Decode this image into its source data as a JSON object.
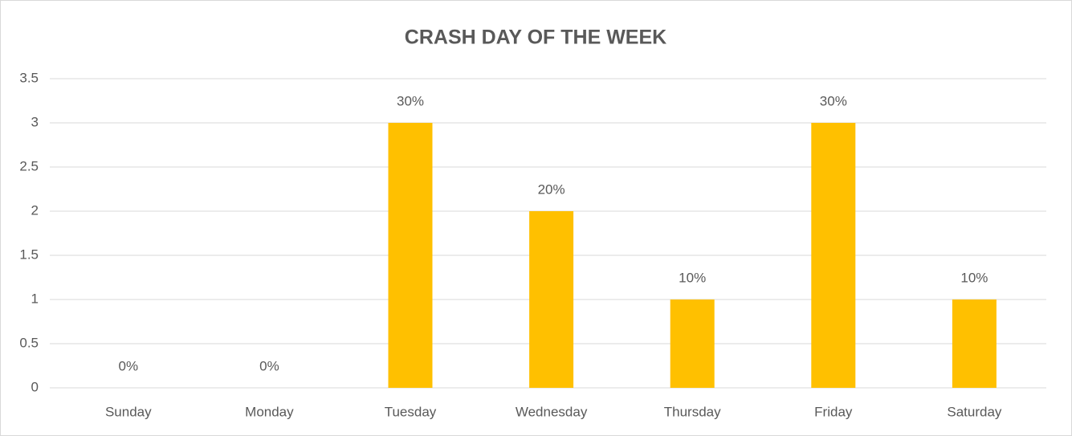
{
  "chart_data": {
    "type": "bar",
    "title": "CRASH DAY OF THE WEEK",
    "categories": [
      "Sunday",
      "Monday",
      "Tuesday",
      "Wednesday",
      "Thursday",
      "Friday",
      "Saturday"
    ],
    "values": [
      0,
      0,
      3,
      2,
      1,
      3,
      1
    ],
    "value_labels": [
      "0%",
      "0%",
      "30%",
      "20%",
      "10%",
      "30%",
      "10%"
    ],
    "color": "#ffc000",
    "ylim": [
      0,
      3.5
    ],
    "yticks": [
      0,
      0.5,
      1,
      1.5,
      2,
      2.5,
      3,
      3.5
    ],
    "grid": true
  }
}
